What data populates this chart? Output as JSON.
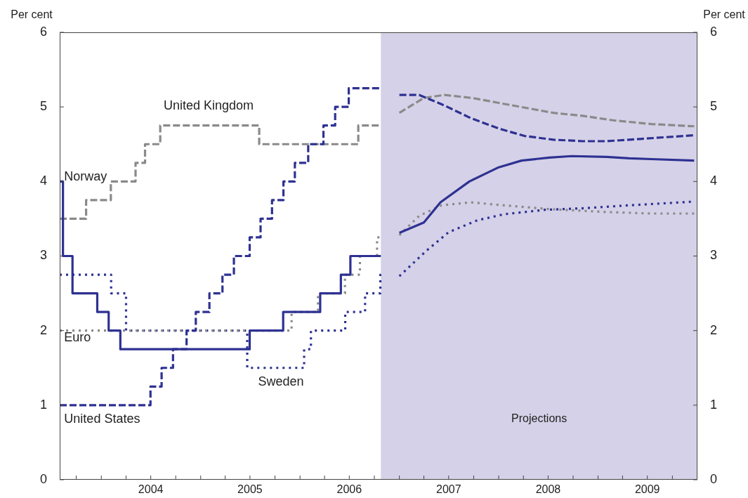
{
  "chart_data": {
    "type": "line",
    "ylabel": "Per cent",
    "y2label": "Per cent",
    "xlim": [
      "2003-08-01",
      "2010-01-01"
    ],
    "xticks": [
      {
        "value": "2003-10-01",
        "label": null
      },
      {
        "value": "2004-01-01",
        "label": null
      },
      {
        "value": "2004-04-01",
        "label": null
      },
      {
        "value": "2004-07-01",
        "label": "2004"
      },
      {
        "value": "2004-10-01",
        "label": null
      },
      {
        "value": "2005-01-01",
        "label": null
      },
      {
        "value": "2005-04-01",
        "label": null
      },
      {
        "value": "2005-07-01",
        "label": "2005"
      },
      {
        "value": "2005-10-01",
        "label": null
      },
      {
        "value": "2006-01-01",
        "label": null
      },
      {
        "value": "2006-04-01",
        "label": null
      },
      {
        "value": "2006-07-01",
        "label": "2006"
      },
      {
        "value": "2006-10-01",
        "label": null
      },
      {
        "value": "2007-01-01",
        "label": null
      },
      {
        "value": "2007-04-01",
        "label": null
      },
      {
        "value": "2007-07-01",
        "label": "2007"
      },
      {
        "value": "2007-10-01",
        "label": null
      },
      {
        "value": "2008-01-01",
        "label": null
      },
      {
        "value": "2008-04-01",
        "label": null
      },
      {
        "value": "2008-07-01",
        "label": "2008"
      },
      {
        "value": "2008-10-01",
        "label": null
      },
      {
        "value": "2009-01-01",
        "label": null
      },
      {
        "value": "2009-04-01",
        "label": null
      },
      {
        "value": "2009-07-01",
        "label": "2009"
      },
      {
        "value": "2009-10-01",
        "label": null
      }
    ],
    "ylim": [
      0,
      6
    ],
    "yticks": [
      0,
      1,
      2,
      3,
      4,
      5,
      6
    ],
    "y2lim": [
      0,
      6
    ],
    "y2ticks": [
      0,
      1,
      2,
      3,
      4,
      5,
      6
    ],
    "grid": false,
    "legend": false,
    "marker": "none",
    "bands": [
      {
        "axis": "x",
        "from": "2006-10-25",
        "to": "2010-01-01",
        "label": "Projections",
        "color": "#d5d1e8"
      }
    ],
    "series": [
      {
        "name": "Norway",
        "type": "step",
        "color": "#2e3192",
        "line_style": "solid",
        "x": [
          "2003-08-01",
          "2003-08-13",
          "2003-09-17",
          "2003-12-17",
          "2004-01-28",
          "2004-03-11",
          "2005-06-30",
          "2005-10-31",
          "2006-03-16",
          "2006-05-31",
          "2006-07-05",
          "2006-10-25"
        ],
        "values": [
          4,
          3,
          2.5,
          2.25,
          2,
          1.75,
          2,
          2.25,
          2.5,
          2.75,
          3,
          3
        ]
      },
      {
        "type": "line",
        "color": "#2e3192",
        "line_style": "solid",
        "x": [
          "2007-01-01",
          "2007-04-01",
          "2007-06-01",
          "2007-09-15",
          "2008-01-01",
          "2008-03-25",
          "2008-07-05",
          "2008-09-25",
          "2009-02-01",
          "2009-04-25",
          "2009-07-15",
          "2009-12-20"
        ],
        "values": [
          3.31,
          3.45,
          3.72,
          4.0,
          4.19,
          4.28,
          4.32,
          4.34,
          4.33,
          4.31,
          4.3,
          4.28
        ]
      },
      {
        "name": "United States",
        "type": "step",
        "color": "#2e3192",
        "line_style": "dashed",
        "x": [
          "2003-08-01",
          "2004-06-30",
          "2004-08-10",
          "2004-09-21",
          "2004-11-10",
          "2004-12-14",
          "2005-02-02",
          "2005-03-22",
          "2005-05-03",
          "2005-06-30",
          "2005-08-09",
          "2005-09-20",
          "2005-11-01",
          "2005-12-13",
          "2006-01-31",
          "2006-03-28",
          "2006-05-10",
          "2006-06-29",
          "2006-10-25"
        ],
        "values": [
          1,
          1.25,
          1.5,
          1.75,
          2,
          2.25,
          2.5,
          2.75,
          3,
          3.25,
          3.5,
          3.75,
          4,
          4.25,
          4.5,
          4.75,
          5,
          5.25,
          5.25
        ]
      },
      {
        "type": "line",
        "color": "#2e3192",
        "line_style": "dashed",
        "x": [
          "2007-01-01",
          "2007-03-15",
          "2007-06-15",
          "2007-09-20",
          "2008-01-01",
          "2008-04-05",
          "2008-07-20",
          "2008-11-05",
          "2009-02-01",
          "2009-06-05",
          "2009-12-20"
        ],
        "values": [
          5.16,
          5.16,
          5.02,
          4.85,
          4.71,
          4.61,
          4.56,
          4.54,
          4.54,
          4.57,
          4.62
        ]
      },
      {
        "name": "United Kingdom",
        "type": "step",
        "color": "#8a8a8a",
        "line_style": "dashed",
        "x": [
          "2003-08-01",
          "2003-11-06",
          "2004-02-05",
          "2004-05-06",
          "2004-06-10",
          "2004-08-05",
          "2005-08-04",
          "2006-08-03",
          "2006-10-25"
        ],
        "values": [
          3.5,
          3.75,
          4,
          4.25,
          4.5,
          4.75,
          4.5,
          4.75,
          4.75
        ]
      },
      {
        "type": "line",
        "color": "#8a8a8a",
        "line_style": "dashed",
        "x": [
          "2007-01-01",
          "2007-04-01",
          "2007-06-15",
          "2007-09-25",
          "2008-02-20",
          "2008-07-20",
          "2008-11-05",
          "2009-02-25",
          "2009-07-15",
          "2009-12-20"
        ],
        "values": [
          4.92,
          5.12,
          5.16,
          5.12,
          5.02,
          4.92,
          4.88,
          4.82,
          4.77,
          4.74
        ]
      },
      {
        "name": "Euro",
        "type": "step",
        "color": "#8a8a8a",
        "line_style": "dotted",
        "x": [
          "2003-08-01",
          "2005-12-01",
          "2006-03-08",
          "2006-06-15",
          "2006-08-09",
          "2006-10-11",
          "2006-10-25"
        ],
        "values": [
          2,
          2.25,
          2.5,
          2.75,
          3,
          3.25,
          3.25
        ]
      },
      {
        "type": "line",
        "color": "#8a8a8a",
        "line_style": "dotted",
        "x": [
          "2007-01-01",
          "2007-03-15",
          "2007-06-05",
          "2007-09-20",
          "2008-01-20",
          "2008-07-01",
          "2009-02-01",
          "2009-07-15",
          "2009-12-20"
        ],
        "values": [
          3.28,
          3.54,
          3.68,
          3.72,
          3.68,
          3.63,
          3.59,
          3.57,
          3.57
        ]
      },
      {
        "name": "Sweden",
        "type": "step",
        "color": "#2e3192",
        "line_style": "dotted",
        "x": [
          "2003-08-01",
          "2004-02-06",
          "2004-04-01",
          "2005-06-21",
          "2006-01-16",
          "2006-02-10",
          "2006-06-16",
          "2006-08-28",
          "2006-10-23",
          "2006-10-25"
        ],
        "values": [
          2.75,
          2.5,
          2,
          1.5,
          1.75,
          2,
          2.25,
          2.5,
          2.75,
          2.75
        ]
      },
      {
        "type": "line",
        "color": "#2e3192",
        "line_style": "dotted",
        "x": [
          "2007-01-01",
          "2007-04-10",
          "2007-07-01",
          "2007-10-15",
          "2008-01-20",
          "2008-06-20",
          "2008-11-05",
          "2009-04-25",
          "2009-12-20"
        ],
        "values": [
          2.73,
          3.07,
          3.32,
          3.48,
          3.56,
          3.62,
          3.64,
          3.68,
          3.73
        ]
      }
    ]
  }
}
